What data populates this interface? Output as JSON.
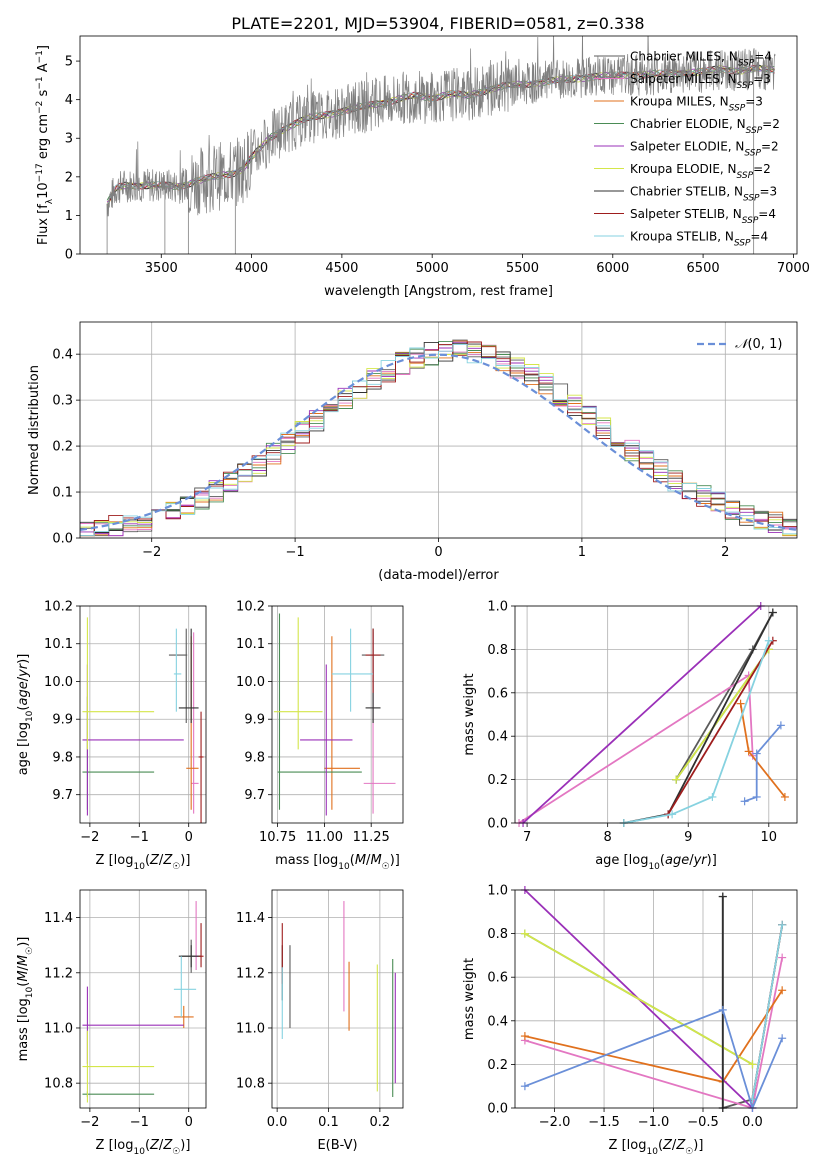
{
  "figure": {
    "title": "PLATE=2201, MJD=53904, FIBERID=0581, z=0.338"
  },
  "models": [
    {
      "label": "Chabrier MILES, N_SSP=4",
      "family": "Chabrier MILES",
      "n_ssp": "4",
      "color": "#5b5b5b"
    },
    {
      "label": "Salpeter MILES, N_SSP=3",
      "family": "Salpeter MILES",
      "n_ssp": "3",
      "color": "#e377c2"
    },
    {
      "label": "Kroupa MILES, N_SSP=3",
      "family": "Kroupa MILES",
      "n_ssp": "3",
      "color": "#e0711e"
    },
    {
      "label": "Chabrier ELODIE, N_SSP=2",
      "family": "Chabrier ELODIE",
      "n_ssp": "2",
      "color": "#4a8c55"
    },
    {
      "label": "Salpeter ELODIE, N_SSP=2",
      "family": "Salpeter ELODIE",
      "n_ssp": "2",
      "color": "#9a30b8"
    },
    {
      "label": "Kroupa ELODIE, N_SSP=2",
      "family": "Kroupa ELODIE",
      "n_ssp": "2",
      "color": "#d4e64a"
    },
    {
      "label": "Chabrier STELIB, N_SSP=3",
      "family": "Chabrier STELIB",
      "n_ssp": "3",
      "color": "#303030"
    },
    {
      "label": "Salpeter STELIB, N_SSP=4",
      "family": "Salpeter STELIB",
      "n_ssp": "4",
      "color": "#9e1d1d"
    },
    {
      "label": "Kroupa STELIB, N_SSP=4",
      "family": "Kroupa STELIB",
      "n_ssp": "4",
      "color": "#86d2e0"
    }
  ],
  "chart_data": [
    {
      "id": "spectrum",
      "type": "line",
      "xlabel": "wavelength [Angstrom, rest frame]",
      "ylabel": "Flux [f_λ 10^-17 erg cm^-2 s^-1 A^-1]",
      "xlim": [
        3050,
        7020
      ],
      "ylim": [
        0,
        5.65
      ],
      "xticks": [
        3500,
        4000,
        4500,
        5000,
        5500,
        6000,
        6500,
        7000
      ],
      "yticks": [
        0,
        1,
        2,
        3,
        4,
        5
      ],
      "legend_position": "upper-right",
      "grid": false,
      "data_color": "#808080",
      "continuum": [
        [
          3200,
          1.3
        ],
        [
          3250,
          1.7
        ],
        [
          3300,
          1.78
        ],
        [
          3400,
          1.78
        ],
        [
          3500,
          1.78
        ],
        [
          3600,
          1.75
        ],
        [
          3700,
          1.9
        ],
        [
          3800,
          2.0
        ],
        [
          3900,
          2.1
        ],
        [
          3950,
          2.2
        ],
        [
          4000,
          2.5
        ],
        [
          4100,
          3.0
        ],
        [
          4200,
          3.3
        ],
        [
          4300,
          3.5
        ],
        [
          4400,
          3.6
        ],
        [
          4500,
          3.7
        ],
        [
          4600,
          3.8
        ],
        [
          4700,
          3.9
        ],
        [
          4800,
          4.0
        ],
        [
          4900,
          4.1
        ],
        [
          5000,
          4.05
        ],
        [
          5100,
          4.15
        ],
        [
          5200,
          4.1
        ],
        [
          5300,
          4.25
        ],
        [
          5400,
          4.35
        ],
        [
          5500,
          4.4
        ],
        [
          5600,
          4.45
        ],
        [
          5700,
          4.5
        ],
        [
          5800,
          4.55
        ],
        [
          5900,
          4.6
        ],
        [
          6000,
          4.62
        ],
        [
          6100,
          4.65
        ],
        [
          6200,
          4.65
        ],
        [
          6300,
          4.68
        ],
        [
          6400,
          4.7
        ],
        [
          6500,
          4.72
        ],
        [
          6600,
          4.8
        ],
        [
          6700,
          4.75
        ],
        [
          6800,
          4.8
        ],
        [
          6900,
          4.78
        ]
      ]
    },
    {
      "id": "residuals",
      "type": "histogram",
      "xlabel": "(data-model)/error",
      "ylabel": "Normed distribution",
      "xlim": [
        -2.5,
        2.5
      ],
      "ylim": [
        0,
        0.47
      ],
      "xticks": [
        -2,
        -1,
        0,
        1,
        2
      ],
      "yticks": [
        0.0,
        0.1,
        0.2,
        0.3,
        0.4
      ],
      "grid": true,
      "reference_curve": {
        "label": "N(0,1)",
        "color": "#6a8fd8",
        "style": "dashed"
      },
      "legend_position": "upper-right",
      "bin_width": 0.1
    },
    {
      "id": "age-vs-Z",
      "type": "scatter",
      "xlabel": "Z [log10(Z/Z☉)]",
      "ylabel": "age  [log10(age/yr)]",
      "xlim": [
        -2.2,
        0.35
      ],
      "ylim": [
        9.625,
        10.2
      ],
      "xticks": [
        -2,
        -1,
        0
      ],
      "yticks": [
        9.7,
        9.8,
        9.9,
        10.0,
        10.1,
        10.2
      ],
      "grid": true,
      "points": [
        {
          "model": 0,
          "x": -0.05,
          "y": 10.07,
          "xerr": [
            0.35,
            0.02
          ],
          "yerr": [
            0.18,
            0.07
          ]
        },
        {
          "model": 1,
          "x": 0.1,
          "y": 9.73,
          "xerr": [
            0.05,
            0.1
          ],
          "yerr": [
            0.08,
            0.4
          ]
        },
        {
          "model": 2,
          "x": 0.05,
          "y": 9.77,
          "xerr": [
            0.1,
            0.15
          ],
          "yerr": [
            0.11,
            0.35
          ]
        },
        {
          "model": 3,
          "x": -2.05,
          "y": 9.76,
          "xerr": [
            0.1,
            1.35
          ],
          "yerr": [
            0.1,
            0.2
          ]
        },
        {
          "model": 4,
          "x": -2.05,
          "y": 9.845,
          "xerr": [
            0.1,
            1.95
          ],
          "yerr": [
            0.2,
            0.2
          ]
        },
        {
          "model": 5,
          "x": -2.05,
          "y": 9.92,
          "xerr": [
            0.1,
            1.35
          ],
          "yerr": [
            0.1,
            0.25
          ]
        },
        {
          "model": 6,
          "x": 0.05,
          "y": 9.93,
          "xerr": [
            0.25,
            0.15
          ],
          "yerr": [
            0.04,
            0.21
          ]
        },
        {
          "model": 7,
          "x": 0.25,
          "y": 9.8,
          "xerr": [
            0.05,
            0.05
          ],
          "yerr": [
            0.2,
            0.12
          ]
        },
        {
          "model": 8,
          "x": -0.25,
          "y": 10.02,
          "xerr": [
            0.05,
            0.1
          ],
          "yerr": [
            0.1,
            0.12
          ]
        }
      ]
    },
    {
      "id": "age-vs-mass",
      "type": "scatter",
      "xlabel": "mass [log10(M/M☉)]",
      "ylabel": "",
      "xlim": [
        10.72,
        11.42
      ],
      "ylim": [
        9.625,
        10.2
      ],
      "xticks": [
        10.75,
        11.0,
        11.25
      ],
      "yticks": [
        9.7,
        9.8,
        9.9,
        10.0,
        10.1,
        10.2
      ],
      "grid": true,
      "points": [
        {
          "model": 0,
          "x": 11.26,
          "y": 10.07,
          "xerr": [
            0.06,
            0.06
          ],
          "yerr": [
            0.18,
            0.07
          ]
        },
        {
          "model": 1,
          "x": 11.26,
          "y": 9.73,
          "xerr": [
            0.05,
            0.12
          ],
          "yerr": [
            0.08,
            0.4
          ]
        },
        {
          "model": 2,
          "x": 11.04,
          "y": 9.77,
          "xerr": [
            0.04,
            0.15
          ],
          "yerr": [
            0.11,
            0.35
          ]
        },
        {
          "model": 3,
          "x": 10.76,
          "y": 9.76,
          "xerr": [
            0.01,
            0.44
          ],
          "yerr": [
            0.1,
            0.42
          ]
        },
        {
          "model": 4,
          "x": 11.01,
          "y": 9.845,
          "xerr": [
            0.14,
            0.14
          ],
          "yerr": [
            0.2,
            0.2
          ]
        },
        {
          "model": 5,
          "x": 10.86,
          "y": 9.92,
          "xerr": [
            0.13,
            0.13
          ],
          "yerr": [
            0.1,
            0.25
          ]
        },
        {
          "model": 6,
          "x": 11.26,
          "y": 9.93,
          "xerr": [
            0.04,
            0.04
          ],
          "yerr": [
            0.04,
            0.21
          ]
        },
        {
          "model": 7,
          "x": 11.26,
          "y": 10.07,
          "xerr": [
            0.04,
            0.04
          ],
          "yerr": [
            0.1,
            0.07
          ]
        },
        {
          "model": 8,
          "x": 11.14,
          "y": 10.02,
          "xerr": [
            0.1,
            0.12
          ],
          "yerr": [
            0.1,
            0.12
          ]
        }
      ]
    },
    {
      "id": "weight-vs-age",
      "type": "line",
      "xlabel": "age  [log10(age/yr)]",
      "ylabel": "mass weight",
      "xlim": [
        6.85,
        10.35
      ],
      "ylim": [
        0,
        1.0
      ],
      "xticks": [
        7,
        8,
        9,
        10
      ],
      "yticks": [
        0.0,
        0.2,
        0.4,
        0.6,
        0.8,
        1.0
      ],
      "grid": true,
      "series": [
        {
          "model": 0,
          "points": [
            [
              8.85,
              0.2
            ],
            [
              9.8,
              0.8
            ],
            [
              10.05,
              0.97
            ]
          ]
        },
        {
          "model": 1,
          "points": [
            [
              6.9,
              0.0
            ],
            [
              9.75,
              0.68
            ],
            [
              9.8,
              0.31
            ]
          ]
        },
        {
          "model": 2,
          "points": [
            [
              9.65,
              0.55
            ],
            [
              9.75,
              0.33
            ],
            [
              10.2,
              0.12
            ]
          ]
        },
        {
          "model": 3,
          "points": [
            [
              8.85,
              0.2
            ],
            [
              10.0,
              0.8
            ]
          ]
        },
        {
          "model": 4,
          "points": [
            [
              6.95,
              0.0
            ],
            [
              9.9,
              1.0
            ]
          ]
        },
        {
          "model": 5,
          "points": [
            [
              8.85,
              0.2
            ],
            [
              10.0,
              0.8
            ]
          ]
        },
        {
          "model": 6,
          "points": [
            [
              8.2,
              0.0
            ],
            [
              8.75,
              0.04
            ],
            [
              10.05,
              0.97
            ]
          ]
        },
        {
          "model": 7,
          "points": [
            [
              8.75,
              0.04
            ],
            [
              10.05,
              0.84
            ]
          ]
        },
        {
          "model": 8,
          "points": [
            [
              8.2,
              0.0
            ],
            [
              8.8,
              0.04
            ],
            [
              9.3,
              0.12
            ],
            [
              10.0,
              0.84
            ]
          ]
        },
        {
          "model": 99,
          "points": [
            [
              9.7,
              0.1
            ],
            [
              9.85,
              0.12
            ],
            [
              9.85,
              0.32
            ],
            [
              10.15,
              0.45
            ]
          ]
        }
      ]
    },
    {
      "id": "mass-vs-Z",
      "type": "scatter",
      "xlabel": "Z [log10(Z/Z☉)]",
      "ylabel": "mass [log10(M/M☉)]",
      "xlim": [
        -2.2,
        0.35
      ],
      "ylim": [
        10.71,
        11.5
      ],
      "xticks": [
        -2,
        -1,
        0
      ],
      "yticks": [
        10.8,
        11.0,
        11.2,
        11.4
      ],
      "grid": true,
      "points": [
        {
          "model": 0,
          "x": 0.05,
          "y": 11.26,
          "xerr": [
            0.2,
            0.15
          ],
          "yerr": [
            0.06,
            0.06
          ]
        },
        {
          "model": 1,
          "x": 0.15,
          "y": 11.26,
          "xerr": [
            0.05,
            0.05
          ],
          "yerr": [
            0.05,
            0.2
          ]
        },
        {
          "model": 2,
          "x": -0.1,
          "y": 11.04,
          "xerr": [
            0.2,
            0.2
          ],
          "yerr": [
            0.04,
            0.04
          ]
        },
        {
          "model": 3,
          "x": -2.05,
          "y": 10.76,
          "xerr": [
            0.1,
            1.35
          ],
          "yerr": [
            0.01,
            0.01
          ]
        },
        {
          "model": 4,
          "x": -2.05,
          "y": 11.01,
          "xerr": [
            0.1,
            1.95
          ],
          "yerr": [
            0.14,
            0.14
          ]
        },
        {
          "model": 5,
          "x": -2.05,
          "y": 10.86,
          "xerr": [
            0.1,
            1.35
          ],
          "yerr": [
            0.13,
            0.13
          ]
        },
        {
          "model": 6,
          "x": 0.05,
          "y": 11.26,
          "xerr": [
            0.25,
            0.2
          ],
          "yerr": [
            0.04,
            0.04
          ]
        },
        {
          "model": 7,
          "x": 0.25,
          "y": 11.26,
          "xerr": [
            0.05,
            0.05
          ],
          "yerr": [
            0.04,
            0.12
          ]
        },
        {
          "model": 8,
          "x": -0.15,
          "y": 11.14,
          "xerr": [
            0.15,
            0.3
          ],
          "yerr": [
            0.1,
            0.12
          ]
        }
      ]
    },
    {
      "id": "mass-vs-ebv",
      "type": "scatter",
      "xlabel": "E(B-V)",
      "ylabel": "",
      "xlim": [
        -0.01,
        0.245
      ],
      "ylim": [
        10.71,
        11.5
      ],
      "xticks": [
        0.0,
        0.1,
        0.2
      ],
      "yticks": [
        10.8,
        11.0,
        11.2,
        11.4
      ],
      "grid": true,
      "points": [
        {
          "model": 0,
          "x": 0.025,
          "y": 11.2,
          "yerr": [
            0.2,
            0.1
          ]
        },
        {
          "model": 1,
          "x": 0.13,
          "y": 11.26,
          "yerr": [
            0.2,
            0.2
          ]
        },
        {
          "model": 2,
          "x": 0.14,
          "y": 11.09,
          "yerr": [
            0.1,
            0.15
          ]
        },
        {
          "model": 3,
          "x": 0.225,
          "y": 11.0,
          "yerr": [
            0.25,
            0.25
          ]
        },
        {
          "model": 4,
          "x": 0.23,
          "y": 11.0,
          "yerr": [
            0.2,
            0.2
          ]
        },
        {
          "model": 5,
          "x": 0.195,
          "y": 11.0,
          "yerr": [
            0.23,
            0.23
          ]
        },
        {
          "model": 6,
          "x": 0.01,
          "y": 11.2,
          "yerr": [
            0.1,
            0.1
          ]
        },
        {
          "model": 7,
          "x": 0.01,
          "y": 11.26,
          "yerr": [
            0.1,
            0.12
          ]
        },
        {
          "model": 8,
          "x": 0.01,
          "y": 11.1,
          "yerr": [
            0.14,
            0.12
          ]
        }
      ]
    },
    {
      "id": "weight-vs-Z",
      "type": "line",
      "xlabel": "Z [log10(Z/Z☉)]",
      "ylabel": "mass weight",
      "xlim": [
        -2.4,
        0.45
      ],
      "ylim": [
        0,
        1.0
      ],
      "xticks": [
        -2.0,
        -1.5,
        -1.0,
        -0.5,
        0.0
      ],
      "yticks": [
        0.0,
        0.2,
        0.4,
        0.6,
        0.8,
        1.0
      ],
      "grid": true,
      "series": [
        {
          "model": 0,
          "points": [
            [
              -0.3,
              0.97
            ],
            [
              -0.3,
              0.0
            ],
            [
              0.0,
              0.04
            ],
            [
              0.3,
              0.84
            ]
          ]
        },
        {
          "model": 1,
          "points": [
            [
              -2.3,
              0.31
            ],
            [
              0.0,
              0.0
            ],
            [
              0.3,
              0.69
            ]
          ]
        },
        {
          "model": 2,
          "points": [
            [
              -2.3,
              0.33
            ],
            [
              -0.3,
              0.12
            ],
            [
              0.3,
              0.54
            ]
          ]
        },
        {
          "model": 3,
          "points": [
            [
              -2.3,
              0.8
            ],
            [
              0.0,
              0.2
            ]
          ]
        },
        {
          "model": 4,
          "points": [
            [
              -2.3,
              1.0
            ],
            [
              0.0,
              0.0
            ]
          ]
        },
        {
          "model": 5,
          "points": [
            [
              -2.3,
              0.8
            ],
            [
              0.0,
              0.2
            ]
          ]
        },
        {
          "model": 6,
          "points": [
            [
              -0.3,
              0.97
            ],
            [
              -0.3,
              0.0
            ]
          ]
        },
        {
          "model": 7,
          "points": [
            [
              0.0,
              0.04
            ],
            [
              0.3,
              0.84
            ]
          ]
        },
        {
          "model": 8,
          "points": [
            [
              0.0,
              0.04
            ],
            [
              0.3,
              0.84
            ]
          ]
        },
        {
          "model": 99,
          "points": [
            [
              -2.3,
              0.1
            ],
            [
              -0.3,
              0.45
            ],
            [
              0.0,
              0.0
            ],
            [
              0.3,
              0.32
            ]
          ]
        }
      ]
    }
  ],
  "extra_color": "#6a8fd8"
}
